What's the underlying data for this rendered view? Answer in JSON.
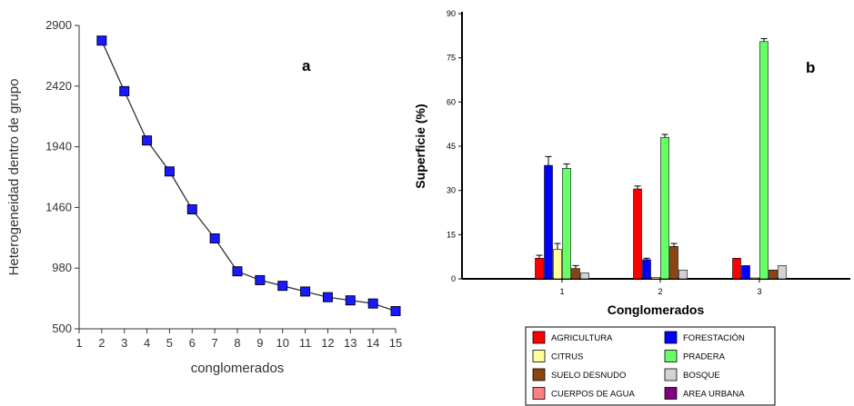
{
  "chart_data": [
    {
      "type": "line",
      "panel_label": "a",
      "xlabel": "conglomerados",
      "ylabel": "Heterogeneidad dentro de grupo",
      "x": [
        2,
        3,
        4,
        5,
        6,
        7,
        8,
        9,
        10,
        11,
        12,
        13,
        14,
        15
      ],
      "values": [
        2780,
        2380,
        1990,
        1745,
        1445,
        1215,
        955,
        885,
        840,
        795,
        750,
        725,
        700,
        640
      ],
      "xlim": [
        1,
        15
      ],
      "ylim": [
        500,
        2900
      ],
      "xticks": [
        "1",
        "2",
        "3",
        "4",
        "5",
        "6",
        "7",
        "8",
        "9",
        "10",
        "11",
        "12",
        "13",
        "14",
        "15"
      ],
      "yticks": [
        "500",
        "980",
        "1460",
        "1940",
        "2420",
        "2900"
      ],
      "marker_color": "#1a1aff",
      "line_color": "#333333"
    },
    {
      "type": "bar",
      "panel_label": "b",
      "xlabel": "Conglomerados",
      "ylabel": "Superficie (%)",
      "categories": [
        "1",
        "2",
        "3"
      ],
      "ylim": [
        0,
        90
      ],
      "yticks": [
        "0",
        "15",
        "30",
        "45",
        "60",
        "75",
        "90"
      ],
      "legend_position": "bottom",
      "series": [
        {
          "name": "AGRICULTURA",
          "color": "#ff0000",
          "values": [
            7,
            30.5,
            7
          ],
          "errors": [
            1,
            1,
            0
          ]
        },
        {
          "name": "FORESTACIÓN",
          "color": "#0000ff",
          "values": [
            38.5,
            6.5,
            4.5
          ],
          "errors": [
            3,
            0.5,
            0
          ]
        },
        {
          "name": "CITRUS",
          "color": "#ffff99",
          "values": [
            10,
            0.5,
            0.3
          ],
          "errors": [
            2,
            0,
            0
          ]
        },
        {
          "name": "PRADERA",
          "color": "#66ff66",
          "values": [
            37.5,
            48,
            80.5
          ],
          "errors": [
            1.5,
            1,
            1
          ]
        },
        {
          "name": "SUELO DESNUDO",
          "color": "#8b4513",
          "values": [
            3.5,
            11,
            3
          ],
          "errors": [
            1,
            1,
            0
          ]
        },
        {
          "name": "BOSQUE",
          "color": "#d3d3d3",
          "values": [
            2,
            3,
            4.5
          ],
          "errors": [
            0,
            0,
            0
          ]
        },
        {
          "name": "CUERPOS DE AGUA",
          "color": "#ff8080",
          "values": [
            0,
            0,
            0
          ],
          "errors": [
            0,
            0,
            0
          ]
        },
        {
          "name": "AREA URBANA",
          "color": "#800080",
          "values": [
            0,
            0,
            0
          ],
          "errors": [
            0,
            0,
            0
          ]
        }
      ]
    }
  ]
}
